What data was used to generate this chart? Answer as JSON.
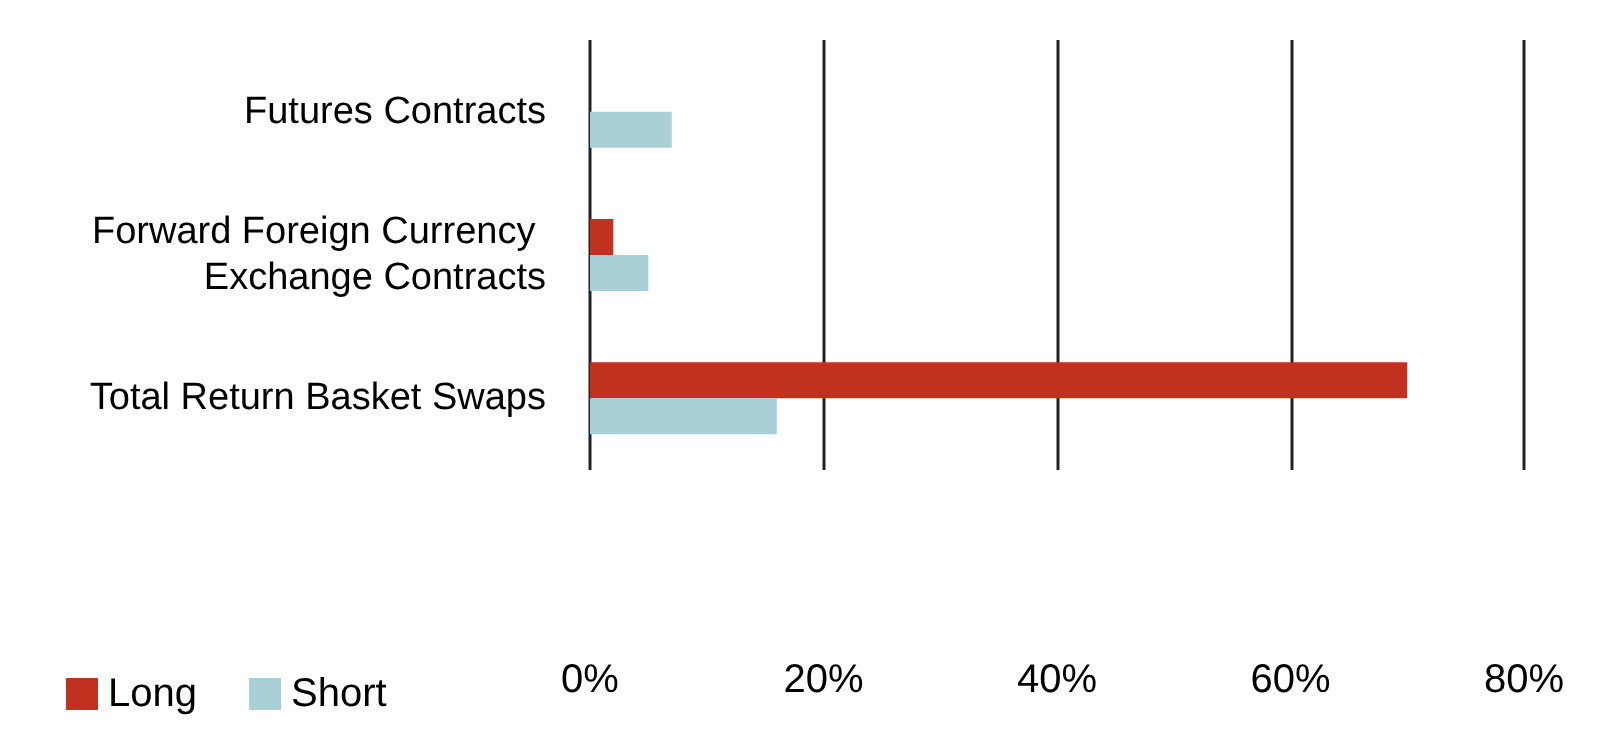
{
  "chart_data": {
    "type": "bar",
    "orientation": "horizontal",
    "categories": [
      "Futures Contracts",
      "Forward Foreign Currency Exchange Contracts",
      "Total Return Basket Swaps"
    ],
    "series": [
      {
        "name": "Long",
        "color": "#c0311f",
        "values": [
          null,
          2,
          70
        ]
      },
      {
        "name": "Short",
        "color": "#a8d0d6",
        "values": [
          7,
          5,
          16
        ]
      }
    ],
    "xlim": [
      0,
      80
    ],
    "xticks": [
      {
        "value": 0,
        "label": "0%"
      },
      {
        "value": 20,
        "label": "20%"
      },
      {
        "value": 40,
        "label": "40%"
      },
      {
        "value": 60,
        "label": "60%"
      },
      {
        "value": 80,
        "label": "80%"
      }
    ],
    "grid": "x",
    "legend": "bottom left"
  }
}
